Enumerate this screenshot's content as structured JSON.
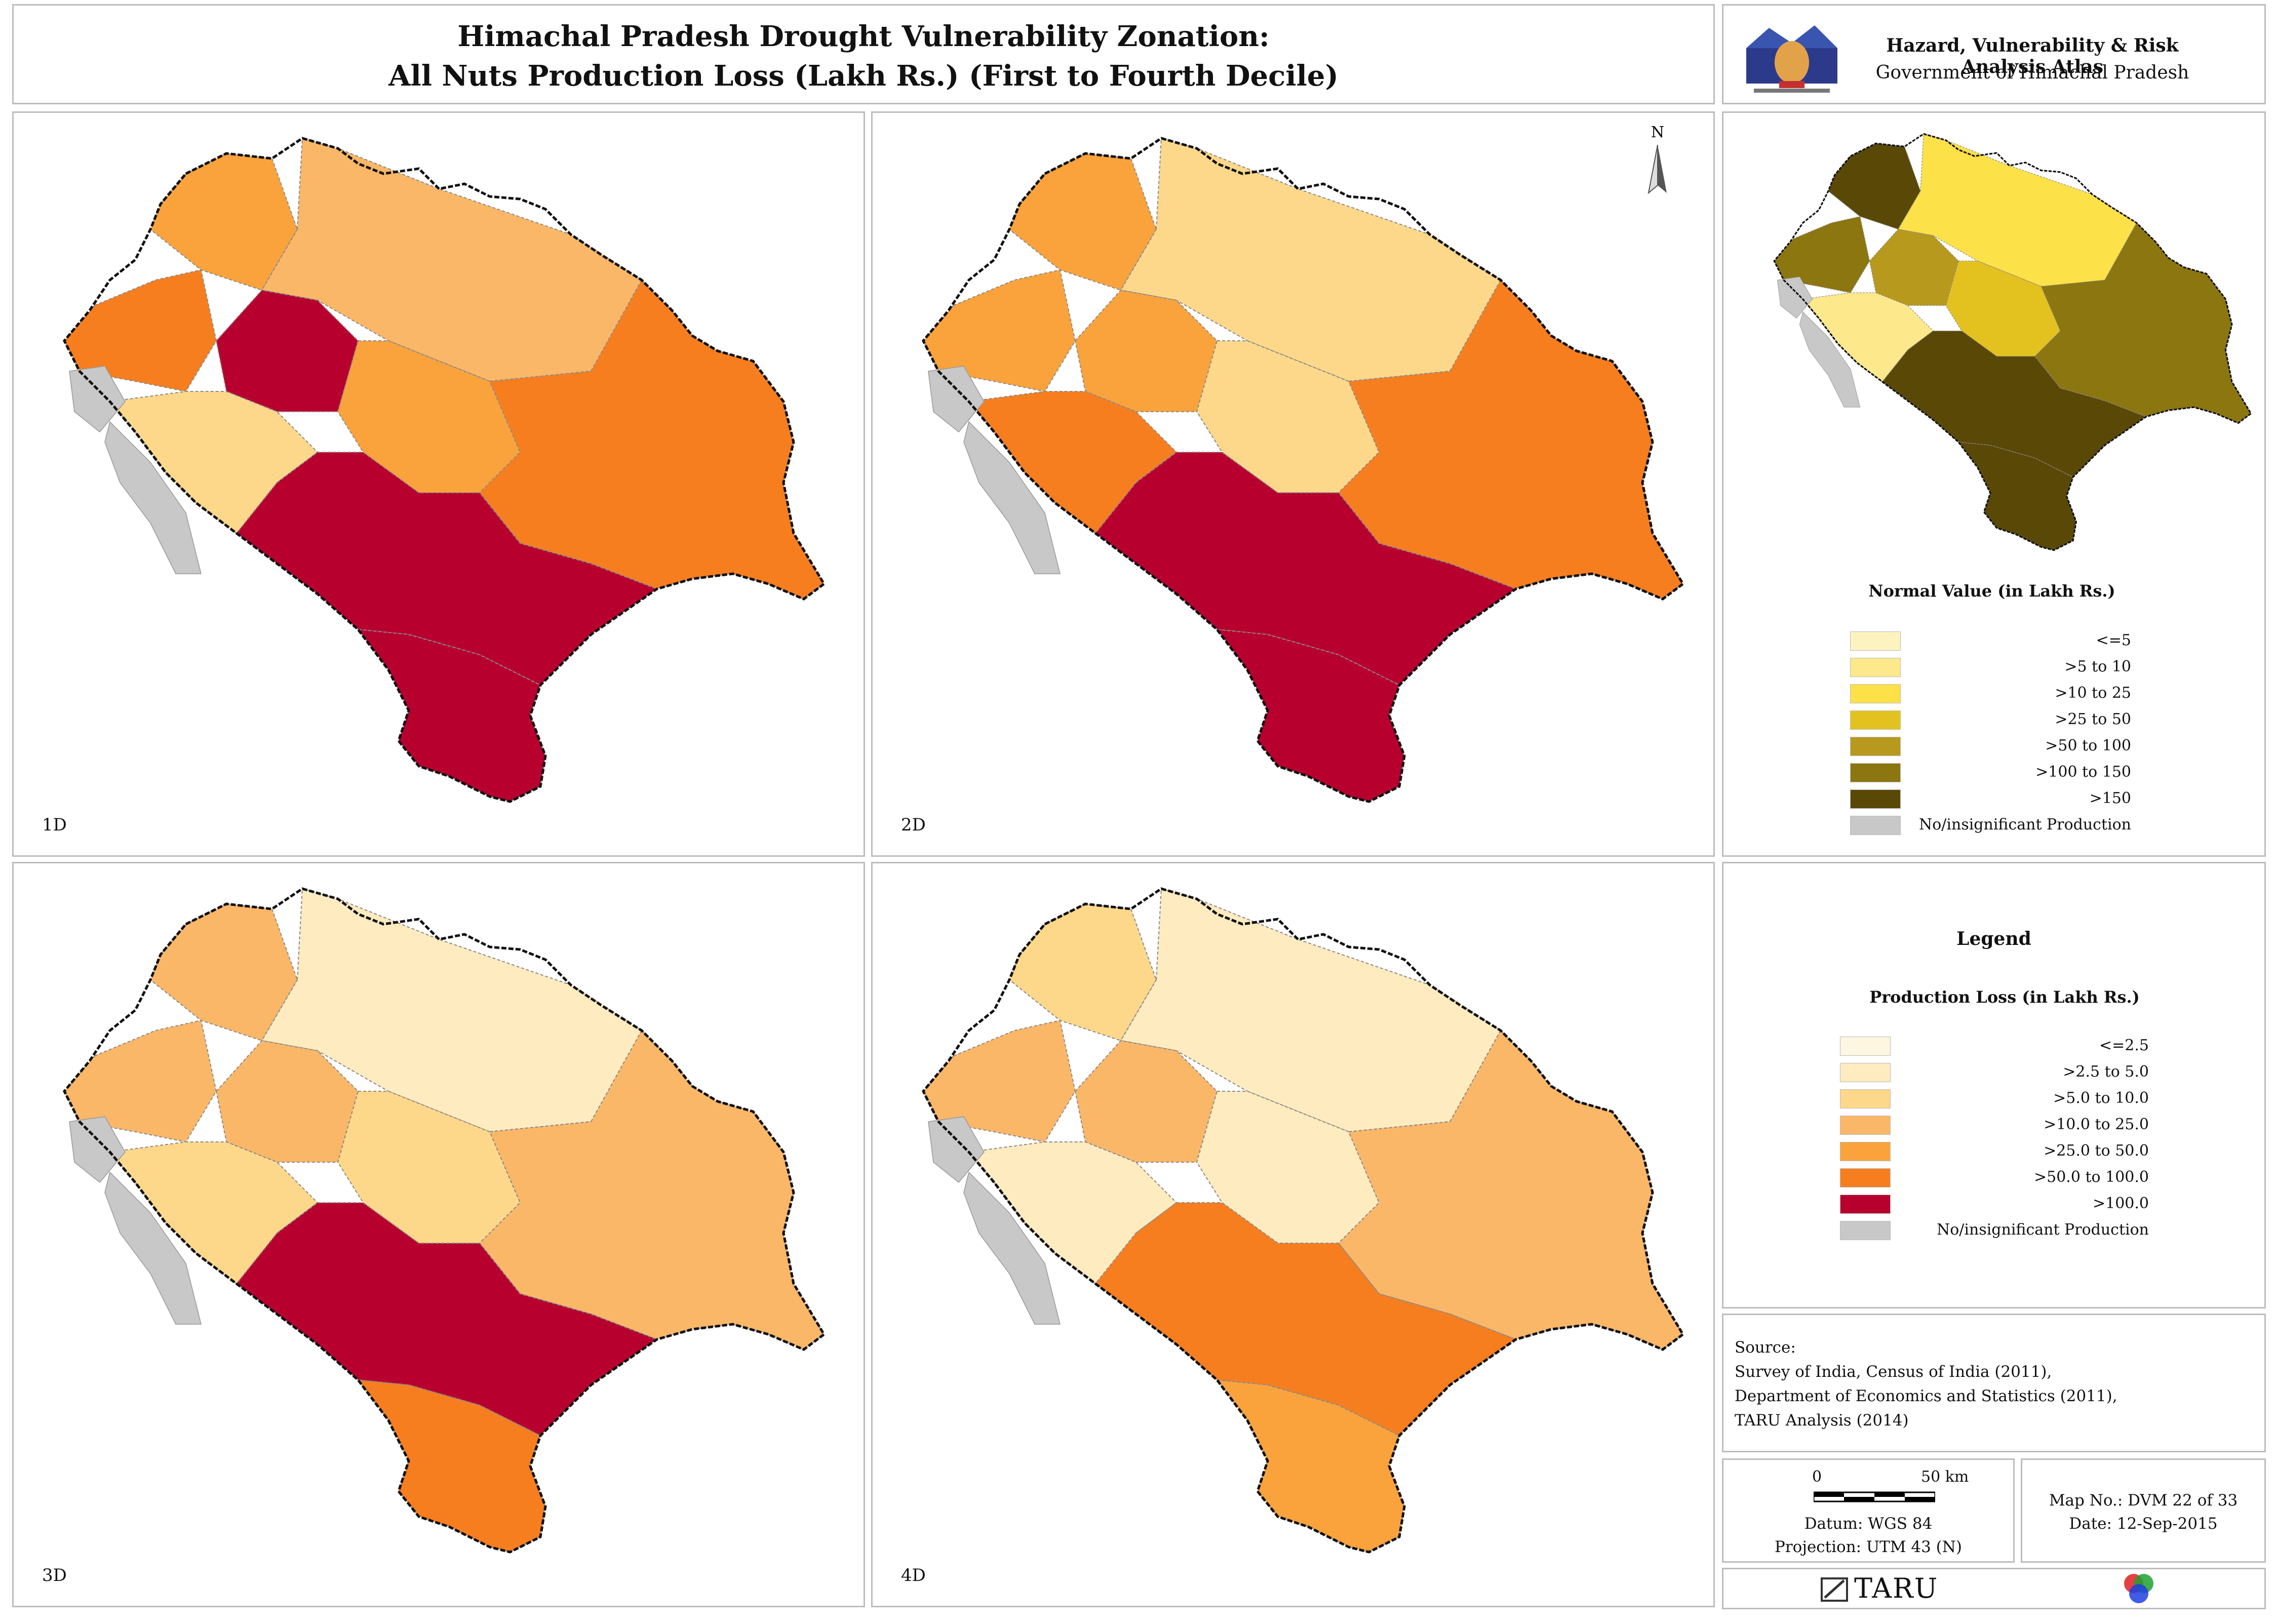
{
  "header": {
    "title_line1": "Himachal Pradesh Drought Vulnerability Zonation:",
    "title_line2": "All Nuts Production Loss (Lakh Rs.) (First to Fourth Decile)"
  },
  "atlas": {
    "title": "Hazard, Vulnerability & Risk Analysis Atlas",
    "subtitle": "Government of Himachal Pradesh",
    "logo_icon": "government-emblem-icon"
  },
  "colors": {
    "loss_scale": [
      "#fdf6e0",
      "#feebbf",
      "#fdd88a",
      "#fbb768",
      "#faa33c",
      "#f77e1f",
      "#b8002f"
    ],
    "normal_scale": [
      "#fdf3c0",
      "#fde98b",
      "#fde148",
      "#e3c21f",
      "#b79a1d",
      "#8c7610",
      "#5a4807"
    ],
    "no_production": "#c8c8c8"
  },
  "maps": [
    {
      "label": "1D",
      "fills": [
        4,
        5,
        3,
        6,
        4,
        2,
        5,
        6,
        6
      ]
    },
    {
      "label": "2D",
      "fills": [
        4,
        4,
        2,
        4,
        2,
        5,
        5,
        6,
        6
      ],
      "north_label": "N"
    },
    {
      "label": "3D",
      "fills": [
        3,
        3,
        1,
        3,
        2,
        2,
        3,
        6,
        5
      ]
    },
    {
      "label": "4D",
      "fills": [
        2,
        3,
        1,
        3,
        1,
        1,
        3,
        5,
        4
      ]
    }
  ],
  "normal_map": {
    "fills": [
      6,
      5,
      2,
      4,
      3,
      1,
      5,
      6,
      6
    ]
  },
  "normal_legend": {
    "heading": "Normal Value (in Lakh Rs.)",
    "items": [
      {
        "label": "<=5"
      },
      {
        "label": ">5 to 10"
      },
      {
        "label": ">10 to 25"
      },
      {
        "label": ">25 to 50"
      },
      {
        "label": ">50 to 100"
      },
      {
        "label": ">100 to 150"
      },
      {
        "label": ">150"
      },
      {
        "label": "No/insignificant Production"
      }
    ]
  },
  "legend": {
    "title": "Legend",
    "heading": "Production Loss (in Lakh Rs.)",
    "items": [
      {
        "label": "<=2.5"
      },
      {
        "label": ">2.5 to 5.0"
      },
      {
        "label": ">5.0 to 10.0"
      },
      {
        "label": ">10.0 to 25.0"
      },
      {
        "label": ">25.0 to 50.0"
      },
      {
        "label": ">50.0 to 100.0"
      },
      {
        "label": ">100.0"
      },
      {
        "label": "No/insignificant Production"
      }
    ]
  },
  "source": {
    "heading": "Source:",
    "lines": [
      "Survey of India, Census of India (2011),",
      "Department of Economics and Statistics (2011),",
      "TARU Analysis (2014)"
    ]
  },
  "scale_info": {
    "zero": "0",
    "distance": "50 km",
    "datum": "Datum: WGS 84",
    "projection": "Projection: UTM 43 (N)"
  },
  "map_info": {
    "map_no": "Map No.: DVM 22 of 33",
    "date": "Date: 12-Sep-2015"
  },
  "footer": {
    "brand": "TARU",
    "brand_icon": "taru-logo-icon",
    "rgb_icon": "rgb-circles-icon"
  }
}
